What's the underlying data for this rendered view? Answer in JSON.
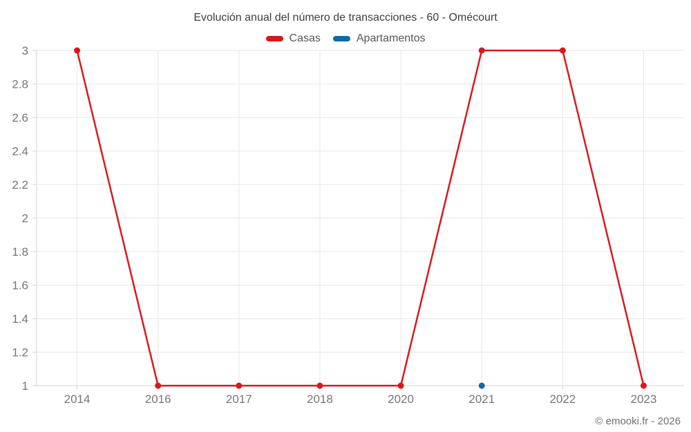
{
  "chart_data": {
    "type": "line",
    "title": "Evolución anual del número de transacciones - 60 - Omécourt",
    "categories": [
      "2014",
      "2016",
      "2017",
      "2018",
      "2020",
      "2021",
      "2022",
      "2023"
    ],
    "series": [
      {
        "name": "Casas",
        "color": "#d7191c",
        "values": [
          3,
          1,
          1,
          1,
          1,
          3,
          3,
          1
        ]
      },
      {
        "name": "Apartamentos",
        "color": "#0f69aa",
        "values": [
          null,
          null,
          null,
          null,
          null,
          1,
          null,
          null
        ]
      }
    ],
    "ylim": [
      1,
      3
    ],
    "ytick_step": 0.2,
    "ytick_labels": [
      "1",
      "1.2",
      "1.4",
      "1.6",
      "1.8",
      "2",
      "2.2",
      "2.4",
      "2.6",
      "2.8",
      "3"
    ],
    "grid": true,
    "legend_position": "top",
    "xlabel": "",
    "ylabel": ""
  },
  "footer": {
    "text": "© emooki.fr - 2026"
  },
  "colors": {
    "gridline": "#e6e6e6",
    "axis": "#d2d2d2",
    "axis_label": "#757575",
    "title": "#3d3d3d",
    "legend_text": "#565656",
    "casas": "#d7191c",
    "apartamentos": "#0f69aa"
  }
}
